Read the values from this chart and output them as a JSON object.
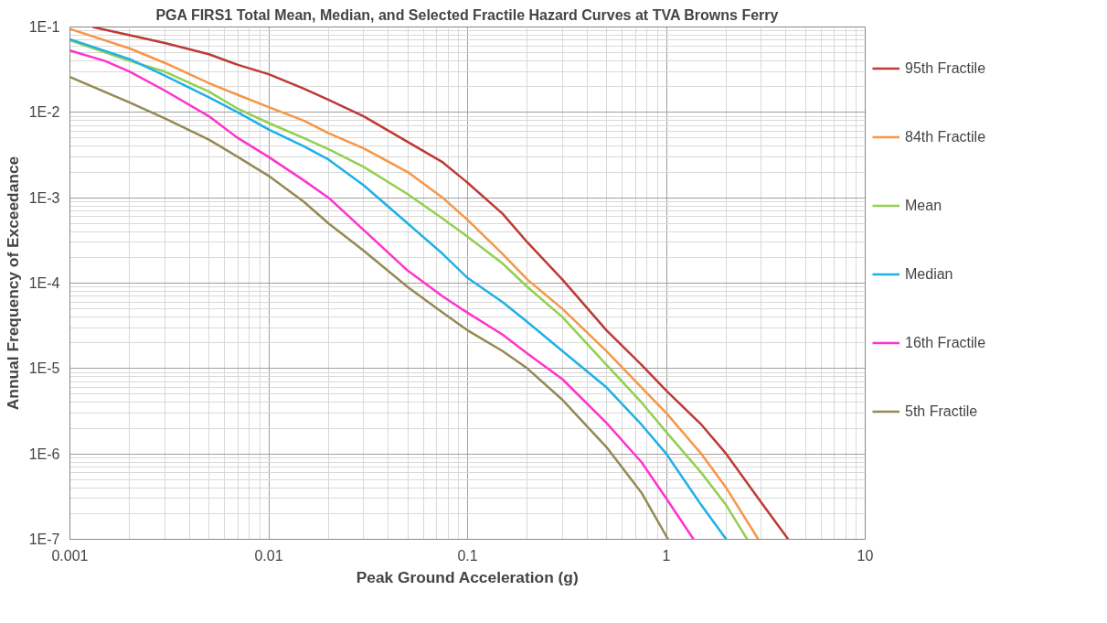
{
  "chart_data": {
    "type": "line",
    "title": "PGA FIRS1 Total Mean, Median, and Selected Fractile Hazard Curves at TVA Browns Ferry",
    "xlabel": "Peak Ground Acceleration (g)",
    "ylabel": "Annual Frequency of Exceedance",
    "log": "xy",
    "grid": true,
    "legend": "right",
    "marker": "none",
    "line_style": "solid",
    "xlim": [
      0.001,
      10
    ],
    "ylim": [
      1e-07,
      0.1
    ],
    "xticks": [
      0.001,
      0.01,
      0.1,
      1,
      10
    ],
    "yticks": [
      {
        "value": 1e-07,
        "label": "1E-7"
      },
      {
        "value": 1e-06,
        "label": "1E-6"
      },
      {
        "value": 1e-05,
        "label": "1E-5"
      },
      {
        "value": 0.0001,
        "label": "1E-4"
      },
      {
        "value": 0.001,
        "label": "1E-3"
      },
      {
        "value": 0.01,
        "label": "1E-2"
      },
      {
        "value": 0.1,
        "label": "1E-1"
      }
    ],
    "series": [
      {
        "name": "95th Fractile",
        "color": "#be3a34",
        "x": [
          0.0013,
          0.002,
          0.003,
          0.005,
          0.007,
          0.01,
          0.015,
          0.02,
          0.03,
          0.05,
          0.075,
          0.1,
          0.15,
          0.2,
          0.3,
          0.5,
          0.75,
          1,
          1.5,
          2,
          3,
          4.1
        ],
        "values": [
          0.1,
          0.08,
          0.065,
          0.048,
          0.036,
          0.028,
          0.019,
          0.014,
          0.009,
          0.0045,
          0.0026,
          0.0015,
          0.00065,
          0.0003,
          0.00011,
          2.8e-05,
          1.1e-05,
          5.5e-06,
          2.2e-06,
          1e-06,
          2.7e-07,
          1e-07
        ]
      },
      {
        "name": "84th Fractile",
        "color": "#f79646",
        "x": [
          0.001,
          0.002,
          0.003,
          0.005,
          0.007,
          0.01,
          0.015,
          0.02,
          0.03,
          0.05,
          0.075,
          0.1,
          0.15,
          0.2,
          0.3,
          0.5,
          0.75,
          1,
          1.5,
          2,
          2.9
        ],
        "values": [
          0.095,
          0.056,
          0.038,
          0.022,
          0.016,
          0.0115,
          0.008,
          0.0057,
          0.0038,
          0.002,
          0.001,
          0.00055,
          0.00022,
          0.00011,
          5e-05,
          1.6e-05,
          6e-06,
          3e-06,
          1e-06,
          4e-07,
          1e-07
        ]
      },
      {
        "name": "Mean",
        "color": "#92d050",
        "x": [
          0.001,
          0.002,
          0.003,
          0.005,
          0.007,
          0.01,
          0.015,
          0.02,
          0.03,
          0.05,
          0.075,
          0.1,
          0.15,
          0.2,
          0.3,
          0.5,
          0.75,
          1,
          1.5,
          2,
          2.55
        ],
        "values": [
          0.07,
          0.04,
          0.03,
          0.0175,
          0.011,
          0.0075,
          0.005,
          0.0037,
          0.0023,
          0.0011,
          0.00057,
          0.00035,
          0.00017,
          9e-05,
          4e-05,
          1.1e-05,
          4e-06,
          1.8e-06,
          6e-07,
          2.5e-07,
          1e-07
        ]
      },
      {
        "name": "Median",
        "color": "#1fb0e6",
        "x": [
          0.001,
          0.002,
          0.003,
          0.005,
          0.007,
          0.01,
          0.015,
          0.02,
          0.03,
          0.05,
          0.075,
          0.1,
          0.15,
          0.2,
          0.3,
          0.5,
          0.75,
          1,
          1.5,
          2
        ],
        "values": [
          0.072,
          0.042,
          0.027,
          0.015,
          0.01,
          0.0063,
          0.004,
          0.0028,
          0.0014,
          0.0005,
          0.00022,
          0.000115,
          6e-05,
          3.5e-05,
          1.6e-05,
          6e-06,
          2.2e-06,
          1e-06,
          2.5e-07,
          1e-07
        ]
      },
      {
        "name": "16th Fractile",
        "color": "#ff33cc",
        "x": [
          0.001,
          0.0015,
          0.002,
          0.003,
          0.005,
          0.007,
          0.01,
          0.015,
          0.02,
          0.03,
          0.05,
          0.075,
          0.1,
          0.15,
          0.2,
          0.3,
          0.5,
          0.75,
          1,
          1.37
        ],
        "values": [
          0.053,
          0.04,
          0.03,
          0.018,
          0.009,
          0.005,
          0.003,
          0.0016,
          0.001,
          0.00042,
          0.00014,
          7e-05,
          4.5e-05,
          2.5e-05,
          1.5e-05,
          7.5e-06,
          2.3e-06,
          8e-07,
          3e-07,
          1e-07
        ]
      },
      {
        "name": "5th Fractile",
        "color": "#948a54",
        "x": [
          0.001,
          0.002,
          0.003,
          0.005,
          0.007,
          0.01,
          0.015,
          0.02,
          0.03,
          0.05,
          0.075,
          0.1,
          0.15,
          0.2,
          0.3,
          0.5,
          0.75,
          1.02
        ],
        "values": [
          0.026,
          0.013,
          0.0085,
          0.0048,
          0.003,
          0.0018,
          0.0009,
          0.0005,
          0.00024,
          9e-05,
          4.5e-05,
          2.8e-05,
          1.6e-05,
          1e-05,
          4.3e-06,
          1.2e-06,
          3.5e-07,
          1e-07
        ]
      }
    ]
  }
}
